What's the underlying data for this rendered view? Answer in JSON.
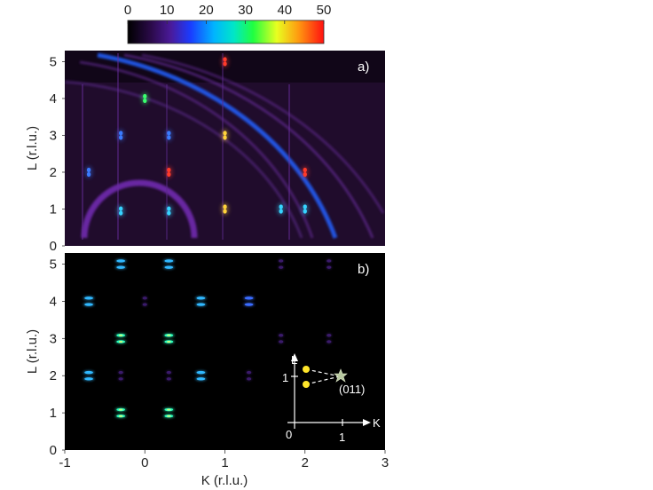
{
  "chart_data": [
    {
      "type": "heatmap",
      "panel_label": "a)",
      "xlabel": "",
      "ylabel": "L (r.l.u.)",
      "xlim": [
        -1,
        3
      ],
      "ylim": [
        0,
        5.3
      ],
      "yticks": [
        "0",
        "1",
        "2",
        "3",
        "4",
        "5"
      ],
      "spots": [
        {
          "k": -0.3,
          "l": 0.95,
          "color": "#36d3ff"
        },
        {
          "k": 0.3,
          "l": 0.95,
          "color": "#36d3ff"
        },
        {
          "k": -0.3,
          "l": 3.0,
          "color": "#3a7bff"
        },
        {
          "k": 0.3,
          "l": 3.0,
          "color": "#3a7bff"
        },
        {
          "k": -0.7,
          "l": 2.0,
          "color": "#3a7bff"
        },
        {
          "k": 0.3,
          "l": 2.0,
          "color": "#ff3a2a"
        },
        {
          "k": 1.0,
          "l": 5.0,
          "color": "#ff3a2a"
        },
        {
          "k": 1.0,
          "l": 3.0,
          "color": "#ffd33a"
        },
        {
          "k": 1.0,
          "l": 1.0,
          "color": "#ffd33a"
        },
        {
          "k": 1.7,
          "l": 1.0,
          "color": "#36d3ff"
        },
        {
          "k": 2.0,
          "l": 1.0,
          "color": "#36d3ff"
        },
        {
          "k": 2.0,
          "l": 2.0,
          "color": "#ff3a2a"
        },
        {
          "k": 0.0,
          "l": 4.0,
          "color": "#3aff6e"
        }
      ],
      "colorbar": {
        "min": 0,
        "max": 50,
        "ticks": [
          "0",
          "10",
          "20",
          "30",
          "40",
          "50"
        ]
      }
    },
    {
      "type": "heatmap",
      "panel_label": "b)",
      "xlabel": "K (r.l.u.)",
      "ylabel": "L (r.l.u.)",
      "xlim": [
        -1,
        3
      ],
      "ylim": [
        0,
        5.3
      ],
      "xticks": [
        "-1",
        "0",
        "1",
        "2",
        "3"
      ],
      "yticks": [
        "0",
        "1",
        "2",
        "3",
        "4",
        "5"
      ],
      "spots": [
        {
          "k": -0.3,
          "l": 1,
          "intensity": 0.9
        },
        {
          "k": 0.3,
          "l": 1,
          "intensity": 0.9
        },
        {
          "k": -0.7,
          "l": 2,
          "intensity": 0.8
        },
        {
          "k": 0.7,
          "l": 2,
          "intensity": 0.8
        },
        {
          "k": -0.3,
          "l": 3,
          "intensity": 1.0
        },
        {
          "k": 0.3,
          "l": 3,
          "intensity": 1.0
        },
        {
          "k": -0.7,
          "l": 4,
          "intensity": 0.7
        },
        {
          "k": 0.7,
          "l": 4,
          "intensity": 0.7
        },
        {
          "k": 1.3,
          "l": 4,
          "intensity": 0.6
        },
        {
          "k": -0.3,
          "l": 5,
          "intensity": 0.75
        },
        {
          "k": 0.3,
          "l": 5,
          "intensity": 0.75
        },
        {
          "k": -0.3,
          "l": 2,
          "intensity": 0.15
        },
        {
          "k": 0.3,
          "l": 2,
          "intensity": 0.15
        },
        {
          "k": 1.3,
          "l": 2,
          "intensity": 0.15
        },
        {
          "k": 1.7,
          "l": 3,
          "intensity": 0.15
        },
        {
          "k": 1.7,
          "l": 5,
          "intensity": 0.12
        },
        {
          "k": 2.3,
          "l": 5,
          "intensity": 0.08
        },
        {
          "k": 2.3,
          "l": 3,
          "intensity": 0.08
        },
        {
          "k": 0.0,
          "l": 4,
          "intensity": 0.1
        }
      ],
      "inset": {
        "axis_L": "L",
        "axis_K": "K",
        "origin": "0",
        "tick_L": "1",
        "tick_K": "1",
        "point_label": "(011)"
      }
    }
  ]
}
